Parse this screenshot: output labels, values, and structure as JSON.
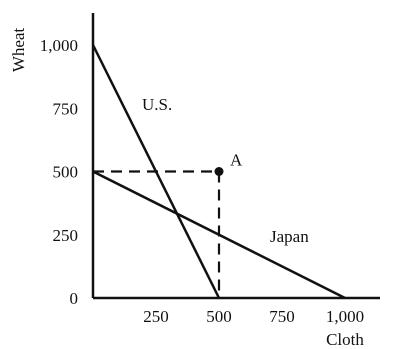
{
  "chart_data": {
    "type": "line",
    "xlabel": "Cloth",
    "ylabel": "Wheat",
    "x_ticks": [
      {
        "value": 250,
        "label": "250"
      },
      {
        "value": 500,
        "label": "500"
      },
      {
        "value": 750,
        "label": "750"
      },
      {
        "value": 1000,
        "label": "1,000"
      }
    ],
    "y_ticks": [
      {
        "value": 0,
        "label": "0"
      },
      {
        "value": 250,
        "label": "250"
      },
      {
        "value": 500,
        "label": "500"
      },
      {
        "value": 750,
        "label": "750"
      },
      {
        "value": 1000,
        "label": "1,000"
      }
    ],
    "series": [
      {
        "name": "U.S.",
        "points": [
          {
            "x": 0,
            "y": 1000
          },
          {
            "x": 500,
            "y": 0
          }
        ]
      },
      {
        "name": "Japan",
        "points": [
          {
            "x": 0,
            "y": 500
          },
          {
            "x": 1000,
            "y": 0
          }
        ]
      }
    ],
    "point": {
      "label": "A",
      "x": 500,
      "y": 500
    },
    "line_color": "#111111"
  }
}
